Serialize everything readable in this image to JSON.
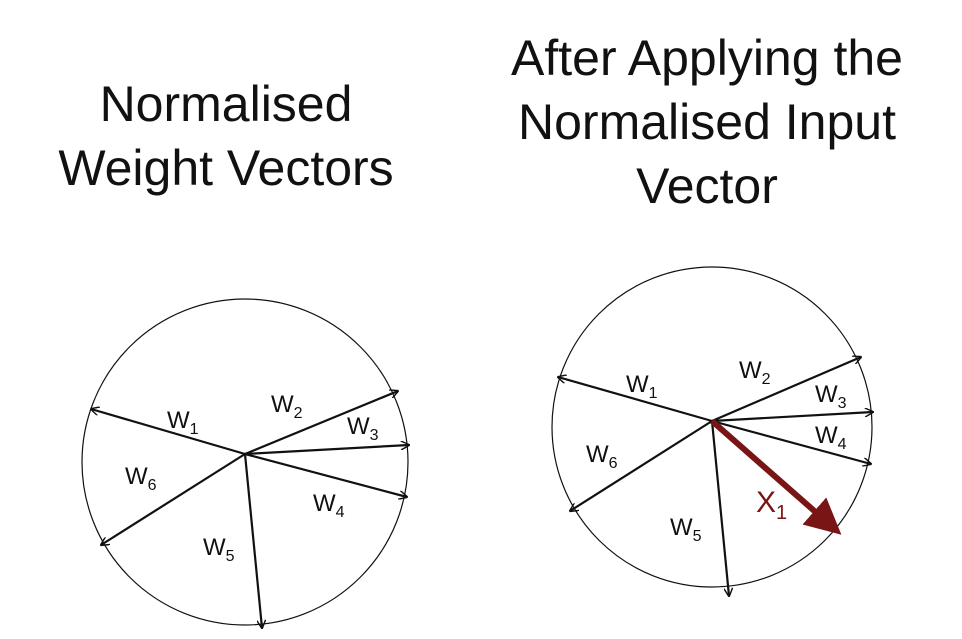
{
  "left_panel": {
    "title_lines": [
      "Normalised",
      "Weight Vectors"
    ],
    "vectors": [
      {
        "name": "W",
        "sub": "1"
      },
      {
        "name": "W",
        "sub": "2"
      },
      {
        "name": "W",
        "sub": "3"
      },
      {
        "name": "W",
        "sub": "4"
      },
      {
        "name": "W",
        "sub": "5"
      },
      {
        "name": "W",
        "sub": "6"
      }
    ]
  },
  "right_panel": {
    "title_lines": [
      "After Applying the",
      "Normalised Input",
      "Vector"
    ],
    "vectors": [
      {
        "name": "W",
        "sub": "1"
      },
      {
        "name": "W",
        "sub": "2"
      },
      {
        "name": "W",
        "sub": "3"
      },
      {
        "name": "W",
        "sub": "4"
      },
      {
        "name": "W",
        "sub": "5"
      },
      {
        "name": "W",
        "sub": "6"
      }
    ],
    "input_vector": {
      "name": "X",
      "sub": "1"
    }
  },
  "colors": {
    "line": "#111111",
    "input_vector": "#7a1515"
  }
}
